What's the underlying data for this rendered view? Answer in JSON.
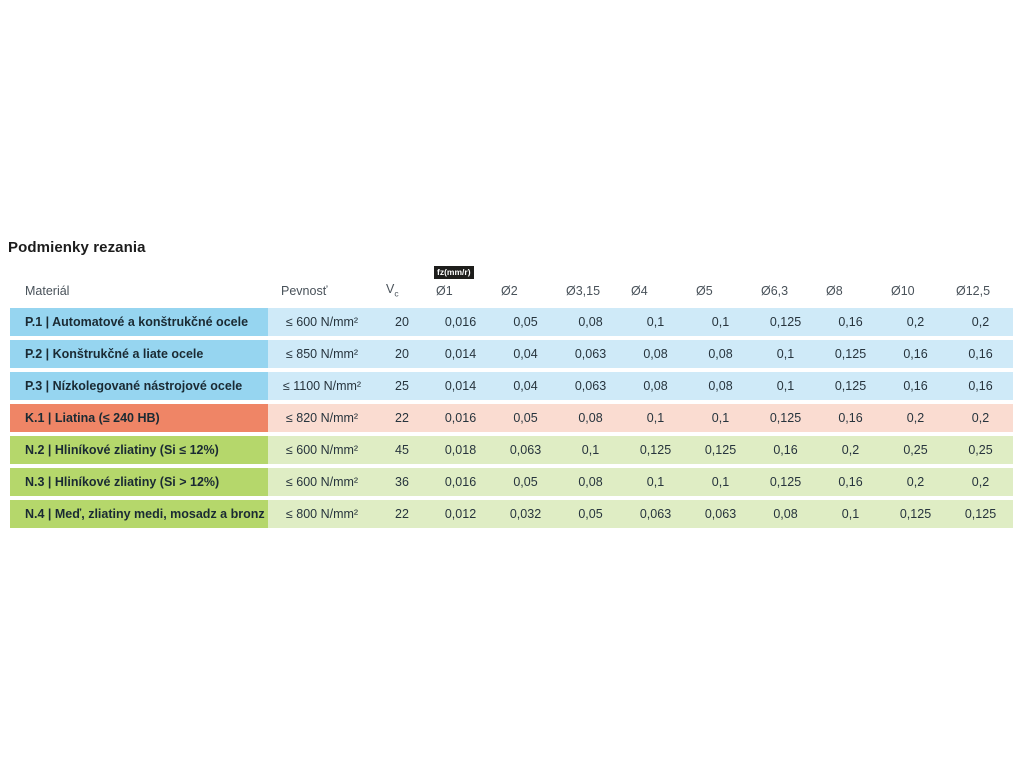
{
  "title": "Podmienky rezania",
  "table": {
    "headers": {
      "material": "Materiál",
      "strength": "Pevnosť",
      "vc_symbol": "V",
      "vc_subscript": "c",
      "fz_badge": "fz(mm/r)",
      "diameters": [
        "Ø1",
        "Ø2",
        "Ø3,15",
        "Ø4",
        "Ø5",
        "Ø6,3",
        "Ø8",
        "Ø10",
        "Ø12,5"
      ]
    },
    "rows": [
      {
        "group": "steel",
        "material": "P.1 | Automatové a konštrukčné ocele",
        "strength": "≤ 600 N/mm²",
        "vc": "20",
        "feeds": [
          "0,016",
          "0,05",
          "0,08",
          "0,1",
          "0,1",
          "0,125",
          "0,16",
          "0,2",
          "0,2"
        ]
      },
      {
        "group": "steel",
        "material": "P.2 | Konštrukčné a liate ocele",
        "strength": "≤ 850 N/mm²",
        "vc": "20",
        "feeds": [
          "0,014",
          "0,04",
          "0,063",
          "0,08",
          "0,08",
          "0,1",
          "0,125",
          "0,16",
          "0,16"
        ]
      },
      {
        "group": "steel",
        "material": "P.3 | Nízkolegované nástrojové ocele",
        "strength": "≤ 1100 N/mm²",
        "vc": "25",
        "feeds": [
          "0,014",
          "0,04",
          "0,063",
          "0,08",
          "0,08",
          "0,1",
          "0,125",
          "0,16",
          "0,16"
        ]
      },
      {
        "group": "cast-iron",
        "material": "K.1 | Liatina (≤ 240 HB)",
        "strength": "≤ 820 N/mm²",
        "vc": "22",
        "feeds": [
          "0,016",
          "0,05",
          "0,08",
          "0,1",
          "0,1",
          "0,125",
          "0,16",
          "0,2",
          "0,2"
        ]
      },
      {
        "group": "nonferrous",
        "material": "N.2 | Hliníkové zliatiny (Si ≤ 12%)",
        "strength": "≤ 600 N/mm²",
        "vc": "45",
        "feeds": [
          "0,018",
          "0,063",
          "0,1",
          "0,125",
          "0,125",
          "0,16",
          "0,2",
          "0,25",
          "0,25"
        ]
      },
      {
        "group": "nonferrous",
        "material": "N.3 | Hliníkové zliatiny (Si > 12%)",
        "strength": "≤ 600 N/mm²",
        "vc": "36",
        "feeds": [
          "0,016",
          "0,05",
          "0,08",
          "0,1",
          "0,1",
          "0,125",
          "0,16",
          "0,2",
          "0,2"
        ]
      },
      {
        "group": "nonferrous",
        "material": "N.4 | Meď, zliatiny medi, mosadz a bronz",
        "strength": "≤ 800 N/mm²",
        "vc": "22",
        "feeds": [
          "0,012",
          "0,032",
          "0,05",
          "0,063",
          "0,063",
          "0,08",
          "0,1",
          "0,125",
          "0,125"
        ]
      }
    ],
    "colors": {
      "steel_label": "#96d5f0",
      "steel_row": "#cfeaf8",
      "cast_iron_label": "#ef8566",
      "cast_iron_row": "#fadcd1",
      "nonferrous_label": "#b5d76b",
      "nonferrous_row": "#dfedc4",
      "badge_bg": "#1d1d1b",
      "badge_text": "#ffffff"
    }
  }
}
